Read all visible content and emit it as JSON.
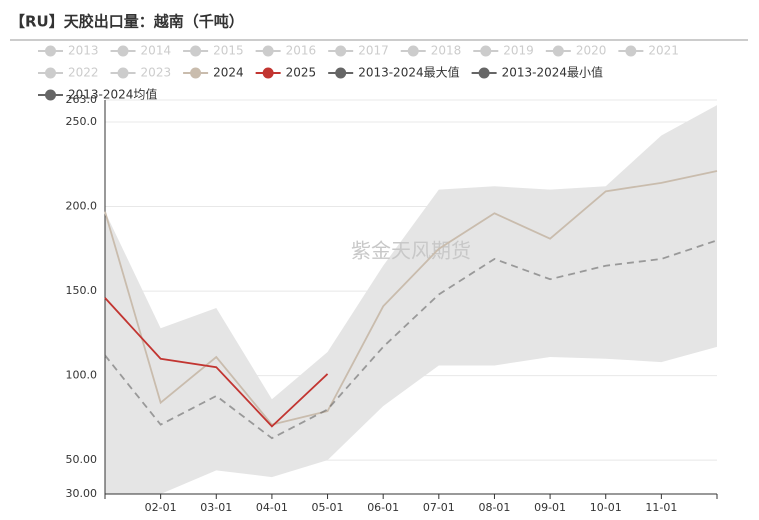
{
  "chart_data": {
    "type": "line",
    "title": "【RU】天胶出口量：越南（千吨）",
    "watermark": "紫金天风期货",
    "categories": [
      null,
      "02-01",
      "03-01",
      "04-01",
      "05-01",
      "06-01",
      "07-01",
      "08-01",
      "09-01",
      "10-01",
      "11-01",
      null
    ],
    "inactive_legend": [
      "2013",
      "2014",
      "2015",
      "2016",
      "2017",
      "2018",
      "2019",
      "2020",
      "2021",
      "2022",
      "2023"
    ],
    "inactive_color": "#cccccc",
    "band_color": "#e5e5e5",
    "series": [
      {
        "name": "2024",
        "color": "#c9bcad",
        "style": "solid",
        "values": [
          197,
          84,
          111,
          71,
          79,
          141,
          175,
          196,
          181,
          209,
          214,
          221
        ]
      },
      {
        "name": "2025",
        "color": "#c23531",
        "style": "solid",
        "values": [
          146,
          110,
          105,
          70,
          101,
          null,
          null,
          null,
          null,
          null,
          null,
          null
        ]
      },
      {
        "name": "2013-2024最大值",
        "color": "#666666",
        "style": "band-upper",
        "values": [
          197,
          128,
          140,
          86,
          114,
          165,
          210,
          212,
          210,
          212,
          242,
          260
        ]
      },
      {
        "name": "2013-2024最小值",
        "color": "#666666",
        "style": "band-lower",
        "values": [
          30,
          30,
          44,
          40,
          50,
          82,
          106,
          106,
          111,
          110,
          108,
          117
        ]
      },
      {
        "name": "2013-2024均值",
        "color": "#666666",
        "style": "dashed",
        "values": [
          112,
          71,
          88,
          63,
          80,
          117,
          148,
          169,
          157,
          165,
          169,
          180
        ]
      }
    ],
    "ylim": [
      30,
      263
    ],
    "yticks": [
      {
        "value": 30,
        "label": "30.00"
      },
      {
        "value": 50,
        "label": "50.00"
      },
      {
        "value": 100,
        "label": "100.0"
      },
      {
        "value": 150,
        "label": "150.0"
      },
      {
        "value": 200,
        "label": "200.0"
      },
      {
        "value": 250,
        "label": "250.0"
      },
      {
        "value": 263,
        "label": "263.0"
      }
    ],
    "grid": true
  }
}
